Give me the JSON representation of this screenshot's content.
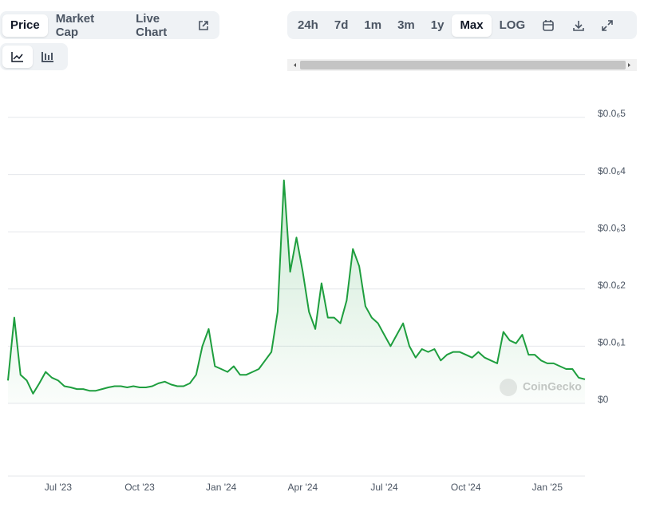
{
  "toolbar": {
    "tabs": [
      "Price",
      "Market Cap",
      "Live Chart"
    ],
    "ranges": [
      "24h",
      "7d",
      "1m",
      "3m",
      "1y",
      "Max",
      "LOG"
    ]
  },
  "chart_data": {
    "type": "line",
    "color": "#1e9e3e",
    "grid": true,
    "watermark": "CoinGecko",
    "categories": [
      null,
      null,
      null,
      null,
      null,
      null,
      null,
      null,
      "Jul '23",
      null,
      null,
      null,
      null,
      null,
      null,
      null,
      null,
      null,
      null,
      null,
      null,
      "Oct '23",
      null,
      null,
      null,
      null,
      null,
      null,
      null,
      null,
      null,
      null,
      null,
      null,
      "Jan '24",
      null,
      null,
      null,
      null,
      null,
      null,
      null,
      null,
      null,
      null,
      null,
      null,
      "Apr '24",
      null,
      null,
      null,
      null,
      null,
      null,
      null,
      null,
      null,
      null,
      null,
      null,
      "Jul '24",
      null,
      null,
      null,
      null,
      null,
      null,
      null,
      null,
      null,
      null,
      null,
      null,
      "Oct '24",
      null,
      null,
      null,
      null,
      null,
      null,
      null,
      null,
      null,
      null,
      null,
      null,
      "Jan '25",
      null,
      null,
      null,
      null,
      null,
      null
    ],
    "values": [
      4e-08,
      1.5e-07,
      5e-08,
      4e-08,
      1.7e-08,
      3.5e-08,
      5.5e-08,
      4.5e-08,
      4e-08,
      3e-08,
      2.8e-08,
      2.5e-08,
      2.5e-08,
      2.2e-08,
      2.2e-08,
      2.5e-08,
      2.8e-08,
      3e-08,
      3e-08,
      2.8e-08,
      3e-08,
      2.8e-08,
      2.8e-08,
      3e-08,
      3.5e-08,
      3.8e-08,
      3.3e-08,
      3e-08,
      3e-08,
      3.5e-08,
      5e-08,
      1e-07,
      1.3e-07,
      6.5e-08,
      6e-08,
      5.5e-08,
      6.5e-08,
      5e-08,
      5e-08,
      5.5e-08,
      6e-08,
      7.5e-08,
      9e-08,
      1.6e-07,
      3.9e-07,
      2.3e-07,
      2.9e-07,
      2.3e-07,
      1.6e-07,
      1.3e-07,
      2.1e-07,
      1.5e-07,
      1.5e-07,
      1.4e-07,
      1.8e-07,
      2.7e-07,
      2.4e-07,
      1.7e-07,
      1.5e-07,
      1.4e-07,
      1.2e-07,
      1e-07,
      1.2e-07,
      1.4e-07,
      1e-07,
      8e-08,
      9.5e-08,
      9e-08,
      9.5e-08,
      7.5e-08,
      8.5e-08,
      9e-08,
      9e-08,
      8.5e-08,
      8e-08,
      9e-08,
      8e-08,
      7.5e-08,
      7e-08,
      1.25e-07,
      1.1e-07,
      1.05e-07,
      1.2e-07,
      8.5e-08,
      8.5e-08,
      7.5e-08,
      7e-08,
      7e-08,
      6.5e-08,
      6e-08,
      6e-08,
      4.5e-08,
      4.2e-08
    ],
    "ylim": [
      0,
      5e-07
    ],
    "yticks": [
      {
        "value": 0,
        "label": "$0"
      },
      {
        "value": 1e-07,
        "label": "$0.0₆1"
      },
      {
        "value": 2e-07,
        "label": "$0.0₆2"
      },
      {
        "value": 3e-07,
        "label": "$0.0₆3"
      },
      {
        "value": 4e-07,
        "label": "$0.0₆4"
      },
      {
        "value": 5e-07,
        "label": "$0.0₆5"
      }
    ]
  }
}
